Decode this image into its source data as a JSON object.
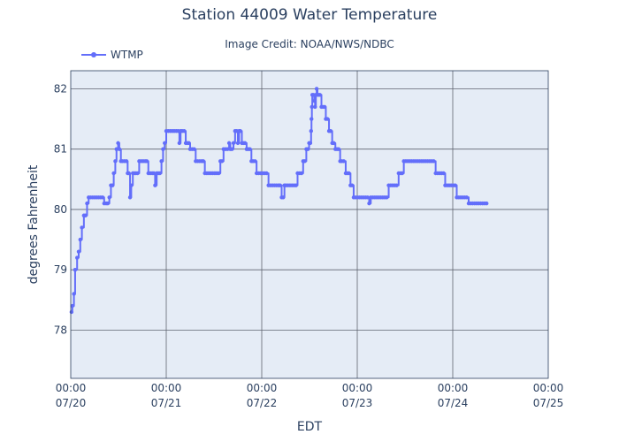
{
  "chart_data": {
    "type": "line",
    "title": "Station 44009 Water Temperature",
    "subtitle": "Image Credit: NOAA/NWS/NDBC",
    "xlabel": "EDT",
    "ylabel": "degrees Fahrenheit",
    "ylim": [
      77.2,
      82.3
    ],
    "xlim": [
      0,
      120
    ],
    "x_ticks": [
      {
        "x": 0,
        "time": "00:00",
        "date": "07/20"
      },
      {
        "x": 24,
        "time": "00:00",
        "date": "07/21"
      },
      {
        "x": 48,
        "time": "00:00",
        "date": "07/22"
      },
      {
        "x": 72,
        "time": "00:00",
        "date": "07/23"
      },
      {
        "x": 96,
        "time": "00:00",
        "date": "07/24"
      },
      {
        "x": 120,
        "time": "00:00",
        "date": "07/25"
      }
    ],
    "y_ticks": [
      78,
      79,
      80,
      81,
      82
    ],
    "grid": true,
    "legend_position": "top-left",
    "colors": {
      "series": "#636efa",
      "plot_bg": "#e5ecf6",
      "grid": "#5f6470",
      "text": "#2a3f5f"
    },
    "series": [
      {
        "name": "WTMP",
        "points": [
          [
            0.2,
            78.3
          ],
          [
            0.4,
            78.4
          ],
          [
            0.8,
            78.6
          ],
          [
            1.1,
            79.0
          ],
          [
            1.6,
            79.2
          ],
          [
            2.0,
            79.3
          ],
          [
            2.4,
            79.5
          ],
          [
            2.8,
            79.7
          ],
          [
            3.3,
            79.9
          ],
          [
            3.7,
            79.9
          ],
          [
            4.1,
            80.1
          ],
          [
            4.5,
            80.2
          ],
          [
            5.0,
            80.2
          ],
          [
            5.5,
            80.2
          ],
          [
            6.0,
            80.2
          ],
          [
            6.5,
            80.2
          ],
          [
            7.0,
            80.2
          ],
          [
            7.5,
            80.2
          ],
          [
            8.0,
            80.2
          ],
          [
            8.4,
            80.1
          ],
          [
            8.9,
            80.1
          ],
          [
            9.3,
            80.1
          ],
          [
            9.7,
            80.2
          ],
          [
            10.1,
            80.4
          ],
          [
            10.5,
            80.4
          ],
          [
            10.8,
            80.6
          ],
          [
            11.2,
            80.8
          ],
          [
            11.5,
            81.0
          ],
          [
            11.9,
            81.1
          ],
          [
            12.2,
            81.0
          ],
          [
            12.6,
            80.8
          ],
          [
            13.0,
            80.8
          ],
          [
            13.5,
            80.8
          ],
          [
            14.0,
            80.8
          ],
          [
            14.3,
            80.6
          ],
          [
            14.6,
            80.6
          ],
          [
            14.9,
            80.2
          ],
          [
            15.2,
            80.4
          ],
          [
            15.6,
            80.6
          ],
          [
            16.0,
            80.6
          ],
          [
            16.4,
            80.6
          ],
          [
            16.8,
            80.6
          ],
          [
            17.2,
            80.8
          ],
          [
            17.7,
            80.8
          ],
          [
            18.2,
            80.8
          ],
          [
            18.7,
            80.8
          ],
          [
            19.1,
            80.8
          ],
          [
            19.5,
            80.6
          ],
          [
            20.0,
            80.6
          ],
          [
            20.5,
            80.6
          ],
          [
            20.9,
            80.6
          ],
          [
            21.2,
            80.4
          ],
          [
            21.6,
            80.6
          ],
          [
            22.0,
            80.6
          ],
          [
            22.4,
            80.6
          ],
          [
            22.8,
            80.8
          ],
          [
            23.2,
            81.0
          ],
          [
            23.6,
            81.1
          ],
          [
            24.0,
            81.3
          ],
          [
            24.5,
            81.3
          ],
          [
            25.0,
            81.3
          ],
          [
            25.5,
            81.3
          ],
          [
            26.0,
            81.3
          ],
          [
            26.5,
            81.3
          ],
          [
            27.0,
            81.3
          ],
          [
            27.3,
            81.1
          ],
          [
            27.6,
            81.3
          ],
          [
            28.0,
            81.3
          ],
          [
            28.5,
            81.3
          ],
          [
            28.9,
            81.1
          ],
          [
            29.3,
            81.1
          ],
          [
            29.7,
            81.1
          ],
          [
            30.0,
            81.0
          ],
          [
            30.5,
            81.0
          ],
          [
            31.0,
            81.0
          ],
          [
            31.4,
            80.8
          ],
          [
            31.9,
            80.8
          ],
          [
            32.4,
            80.8
          ],
          [
            32.9,
            80.8
          ],
          [
            33.3,
            80.8
          ],
          [
            33.7,
            80.6
          ],
          [
            34.2,
            80.6
          ],
          [
            34.7,
            80.6
          ],
          [
            35.2,
            80.6
          ],
          [
            35.7,
            80.6
          ],
          [
            36.2,
            80.6
          ],
          [
            36.7,
            80.6
          ],
          [
            37.2,
            80.6
          ],
          [
            37.6,
            80.8
          ],
          [
            38.0,
            80.8
          ],
          [
            38.4,
            81.0
          ],
          [
            38.9,
            81.0
          ],
          [
            39.4,
            81.0
          ],
          [
            39.8,
            81.1
          ],
          [
            40.1,
            81.0
          ],
          [
            40.5,
            81.0
          ],
          [
            40.9,
            81.1
          ],
          [
            41.3,
            81.3
          ],
          [
            41.7,
            81.3
          ],
          [
            42.0,
            81.1
          ],
          [
            42.3,
            81.3
          ],
          [
            42.6,
            81.3
          ],
          [
            43.0,
            81.1
          ],
          [
            43.4,
            81.1
          ],
          [
            43.8,
            81.1
          ],
          [
            44.2,
            81.0
          ],
          [
            44.6,
            81.0
          ],
          [
            45.0,
            81.0
          ],
          [
            45.4,
            80.8
          ],
          [
            45.8,
            80.8
          ],
          [
            46.3,
            80.8
          ],
          [
            46.7,
            80.6
          ],
          [
            47.2,
            80.6
          ],
          [
            47.7,
            80.6
          ],
          [
            48.2,
            80.6
          ],
          [
            48.7,
            80.6
          ],
          [
            49.2,
            80.6
          ],
          [
            49.7,
            80.4
          ],
          [
            50.2,
            80.4
          ],
          [
            50.7,
            80.4
          ],
          [
            51.2,
            80.4
          ],
          [
            51.7,
            80.4
          ],
          [
            52.2,
            80.4
          ],
          [
            52.6,
            80.4
          ],
          [
            53.0,
            80.2
          ],
          [
            53.4,
            80.2
          ],
          [
            53.7,
            80.4
          ],
          [
            54.1,
            80.4
          ],
          [
            54.6,
            80.4
          ],
          [
            55.1,
            80.4
          ],
          [
            55.6,
            80.4
          ],
          [
            56.1,
            80.4
          ],
          [
            56.6,
            80.4
          ],
          [
            57.0,
            80.6
          ],
          [
            57.5,
            80.6
          ],
          [
            58.0,
            80.6
          ],
          [
            58.4,
            80.8
          ],
          [
            58.8,
            80.8
          ],
          [
            59.2,
            81.0
          ],
          [
            59.6,
            81.0
          ],
          [
            59.9,
            81.1
          ],
          [
            60.2,
            81.1
          ],
          [
            60.4,
            81.3
          ],
          [
            60.5,
            81.5
          ],
          [
            60.6,
            81.7
          ],
          [
            60.7,
            81.9
          ],
          [
            61.0,
            81.9
          ],
          [
            61.2,
            81.8
          ],
          [
            61.4,
            81.7
          ],
          [
            61.6,
            81.9
          ],
          [
            61.8,
            82.0
          ],
          [
            62.0,
            81.9
          ],
          [
            62.3,
            81.9
          ],
          [
            62.6,
            81.9
          ],
          [
            63.0,
            81.7
          ],
          [
            63.4,
            81.7
          ],
          [
            63.8,
            81.7
          ],
          [
            64.1,
            81.5
          ],
          [
            64.5,
            81.5
          ],
          [
            64.9,
            81.3
          ],
          [
            65.3,
            81.3
          ],
          [
            65.7,
            81.1
          ],
          [
            66.1,
            81.1
          ],
          [
            66.5,
            81.0
          ],
          [
            66.9,
            81.0
          ],
          [
            67.3,
            81.0
          ],
          [
            67.7,
            80.8
          ],
          [
            68.1,
            80.8
          ],
          [
            68.6,
            80.8
          ],
          [
            69.1,
            80.6
          ],
          [
            69.5,
            80.6
          ],
          [
            69.9,
            80.6
          ],
          [
            70.3,
            80.4
          ],
          [
            70.7,
            80.4
          ],
          [
            71.1,
            80.2
          ],
          [
            71.6,
            80.2
          ],
          [
            72.1,
            80.2
          ],
          [
            72.6,
            80.2
          ],
          [
            73.1,
            80.2
          ],
          [
            73.6,
            80.2
          ],
          [
            74.1,
            80.2
          ],
          [
            74.6,
            80.2
          ],
          [
            75.0,
            80.1
          ],
          [
            75.4,
            80.2
          ],
          [
            75.9,
            80.2
          ],
          [
            76.4,
            80.2
          ],
          [
            76.9,
            80.2
          ],
          [
            77.4,
            80.2
          ],
          [
            77.9,
            80.2
          ],
          [
            78.4,
            80.2
          ],
          [
            78.9,
            80.2
          ],
          [
            79.4,
            80.2
          ],
          [
            79.9,
            80.4
          ],
          [
            80.4,
            80.4
          ],
          [
            80.9,
            80.4
          ],
          [
            81.4,
            80.4
          ],
          [
            81.9,
            80.4
          ],
          [
            82.4,
            80.6
          ],
          [
            82.9,
            80.6
          ],
          [
            83.3,
            80.6
          ],
          [
            83.7,
            80.8
          ],
          [
            84.2,
            80.8
          ],
          [
            84.7,
            80.8
          ],
          [
            85.2,
            80.8
          ],
          [
            85.7,
            80.8
          ],
          [
            86.2,
            80.8
          ],
          [
            86.7,
            80.8
          ],
          [
            87.2,
            80.8
          ],
          [
            87.7,
            80.8
          ],
          [
            88.2,
            80.8
          ],
          [
            88.7,
            80.8
          ],
          [
            89.2,
            80.8
          ],
          [
            89.7,
            80.8
          ],
          [
            90.2,
            80.8
          ],
          [
            90.7,
            80.8
          ],
          [
            91.2,
            80.8
          ],
          [
            91.7,
            80.6
          ],
          [
            92.2,
            80.6
          ],
          [
            92.7,
            80.6
          ],
          [
            93.2,
            80.6
          ],
          [
            93.7,
            80.6
          ],
          [
            94.1,
            80.4
          ],
          [
            94.6,
            80.4
          ],
          [
            95.1,
            80.4
          ],
          [
            95.6,
            80.4
          ],
          [
            96.1,
            80.4
          ],
          [
            96.6,
            80.4
          ],
          [
            97.0,
            80.2
          ],
          [
            97.5,
            80.2
          ],
          [
            98.0,
            80.2
          ],
          [
            98.5,
            80.2
          ],
          [
            99.0,
            80.2
          ],
          [
            99.5,
            80.2
          ],
          [
            100.0,
            80.1
          ],
          [
            100.5,
            80.1
          ],
          [
            101.0,
            80.1
          ],
          [
            101.5,
            80.1
          ],
          [
            102.0,
            80.1
          ],
          [
            102.5,
            80.1
          ],
          [
            103.0,
            80.1
          ],
          [
            103.5,
            80.1
          ],
          [
            104.0,
            80.1
          ],
          [
            104.5,
            80.1
          ]
        ]
      }
    ]
  }
}
